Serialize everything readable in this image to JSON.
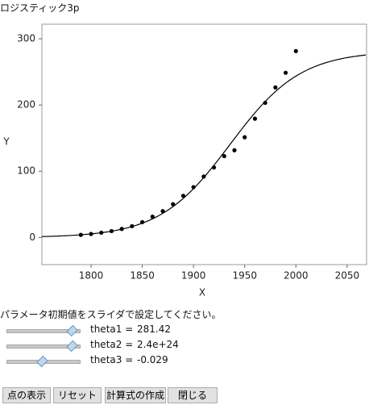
{
  "window_title": "ロジスティック3p",
  "chart_data": {
    "type": "scatter",
    "x_label": "X",
    "y_label": "Y",
    "x": [
      1790,
      1800,
      1810,
      1820,
      1830,
      1840,
      1850,
      1860,
      1870,
      1880,
      1890,
      1900,
      1910,
      1920,
      1930,
      1940,
      1950,
      1960,
      1970,
      1980,
      1990,
      2000
    ],
    "values": [
      3.9,
      5.3,
      7.2,
      9.6,
      12.9,
      17.1,
      23.2,
      31.4,
      39.8,
      50.2,
      62.9,
      76.0,
      92.0,
      105.7,
      122.8,
      131.7,
      151.3,
      179.3,
      203.3,
      226.5,
      248.7,
      281.4
    ],
    "color": "#000000",
    "curve_color": "#000000",
    "xlim": [
      1752,
      2069
    ],
    "ylim": [
      -41,
      322
    ],
    "xticks": [
      1800,
      1850,
      1900,
      1950,
      2000,
      2050
    ],
    "yticks": [
      0,
      100,
      200,
      300
    ]
  },
  "instruction": "パラメータ初期値をスライダで設定してください。",
  "sliders": [
    {
      "name": "theta1 =",
      "value": 281.42
    },
    {
      "name": "theta2 =",
      "value": 2.4e+24
    },
    {
      "name": "theta3 =",
      "value": -0.029
    }
  ],
  "buttons": [
    "点の表示",
    "リセット",
    "計算式の作成",
    "閉じる"
  ]
}
